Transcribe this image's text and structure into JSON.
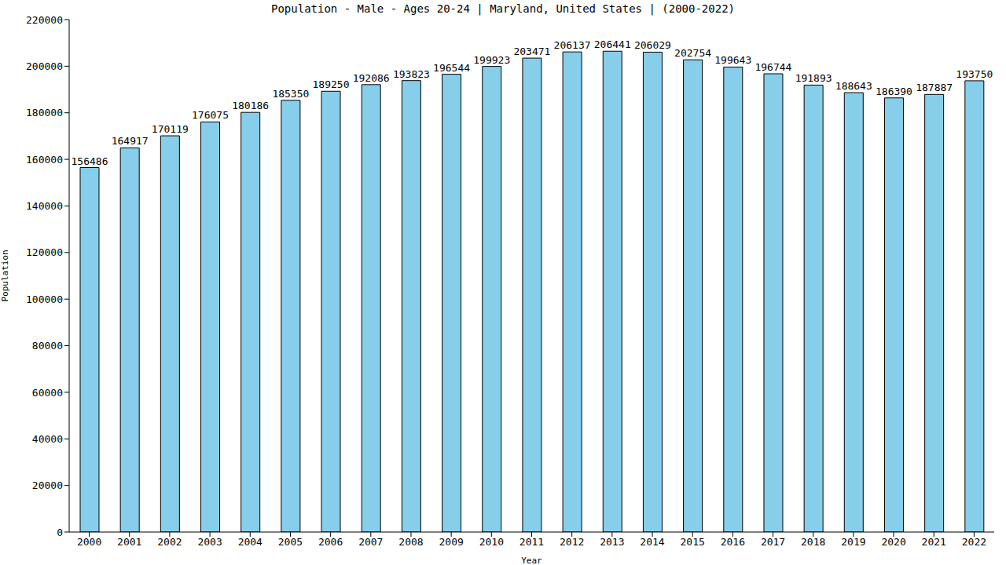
{
  "chart_data": {
    "type": "bar",
    "title": "Population - Male - Ages 20-24 | Maryland, United States | (2000-2022)",
    "x_label": "Year",
    "y_label": "Population",
    "categories": [
      "2000",
      "2001",
      "2002",
      "2003",
      "2004",
      "2005",
      "2006",
      "2007",
      "2008",
      "2009",
      "2010",
      "2011",
      "2012",
      "2013",
      "2014",
      "2015",
      "2016",
      "2017",
      "2018",
      "2019",
      "2020",
      "2021",
      "2022"
    ],
    "values": [
      156486,
      164917,
      170119,
      176075,
      180186,
      185350,
      189250,
      192086,
      193823,
      196544,
      199923,
      203471,
      206137,
      206441,
      206029,
      202754,
      199643,
      196744,
      191893,
      188643,
      186390,
      187887,
      193750
    ],
    "color": "#87ceeb",
    "ylim": [
      0,
      220000
    ],
    "yticks": [
      0,
      20000,
      40000,
      60000,
      80000,
      100000,
      120000,
      140000,
      160000,
      180000,
      200000,
      220000
    ],
    "grid": false,
    "data_labels": true
  }
}
